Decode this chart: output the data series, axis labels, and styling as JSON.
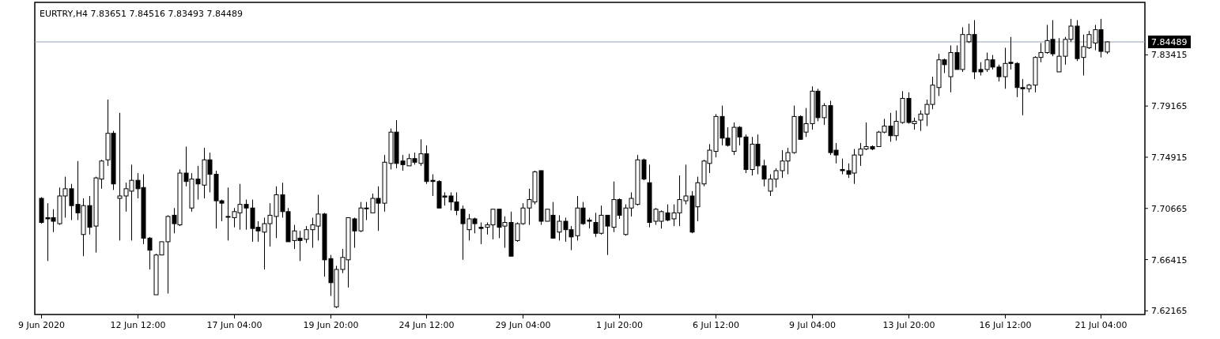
{
  "chart_data": {
    "type": "candlestick",
    "title": "EURTRY,H4  7.83651 7.84516 7.83493 7.84489",
    "categories": [
      "9 Jun 2020",
      null,
      null,
      null,
      null,
      null,
      null,
      null,
      null,
      null,
      null,
      null,
      null,
      null,
      null,
      null,
      "12 Jun 12:00",
      null,
      null,
      null,
      null,
      null,
      null,
      null,
      null,
      null,
      null,
      null,
      null,
      null,
      null,
      null,
      "17 Jun 04:00",
      null,
      null,
      null,
      null,
      null,
      null,
      null,
      null,
      null,
      null,
      null,
      null,
      null,
      null,
      null,
      "19 Jun 20:00",
      null,
      null,
      null,
      null,
      null,
      null,
      null,
      null,
      null,
      null,
      null,
      null,
      null,
      null,
      null,
      "24 Jun 12:00",
      null,
      null,
      null,
      null,
      null,
      null,
      null,
      null,
      null,
      null,
      null,
      null,
      null,
      null,
      null,
      "29 Jun 04:00",
      null,
      null,
      null,
      null,
      null,
      null,
      null,
      null,
      null,
      null,
      null,
      null,
      null,
      null,
      null,
      "1 Jul 20:00",
      null,
      null,
      null,
      null,
      null,
      null,
      null,
      null,
      null,
      null,
      null,
      null,
      null,
      null,
      null,
      "6 Jul 12:00",
      null,
      null,
      null,
      null,
      null,
      null,
      null,
      null,
      null,
      null,
      null,
      null,
      null,
      null,
      null,
      "9 Jul 04:00",
      null,
      null,
      null,
      null,
      null,
      null,
      null,
      null,
      null,
      null,
      null,
      null,
      null,
      null,
      null,
      "13 Jul 20:00",
      null,
      null,
      null,
      null,
      null,
      null,
      null,
      null,
      null,
      null,
      null,
      null,
      null,
      null,
      null,
      "16 Jul 12:00",
      null,
      null,
      null,
      null,
      null,
      null,
      null,
      null,
      null,
      null,
      null,
      null,
      null,
      null,
      null,
      "21 Jul 04:00",
      null
    ],
    "ohlc": [
      [
        7.715,
        7.716,
        7.694,
        7.695
      ],
      [
        7.699,
        7.711,
        7.663,
        7.698
      ],
      [
        7.699,
        7.706,
        7.687,
        7.696
      ],
      [
        7.694,
        7.724,
        7.693,
        7.717
      ],
      [
        7.717,
        7.733,
        7.699,
        7.723
      ],
      [
        7.723,
        7.727,
        7.697,
        7.709
      ],
      [
        7.71,
        7.746,
        7.697,
        7.703
      ],
      [
        7.685,
        7.715,
        7.667,
        7.709
      ],
      [
        7.709,
        7.717,
        7.685,
        7.691
      ],
      [
        7.692,
        7.733,
        7.67,
        7.732
      ],
      [
        7.731,
        7.747,
        7.723,
        7.746
      ],
      [
        7.747,
        7.797,
        7.742,
        7.769
      ],
      [
        7.769,
        7.771,
        7.722,
        7.727
      ],
      [
        7.715,
        7.786,
        7.68,
        7.717
      ],
      [
        7.717,
        7.728,
        7.704,
        7.723
      ],
      [
        7.721,
        7.743,
        7.68,
        7.73
      ],
      [
        7.73,
        7.736,
        7.715,
        7.723
      ],
      [
        7.724,
        7.735,
        7.677,
        7.682
      ],
      [
        7.682,
        7.683,
        7.656,
        7.672
      ],
      [
        7.635,
        7.669,
        7.635,
        7.668
      ],
      [
        7.668,
        7.679,
        7.668,
        7.679
      ],
      [
        7.679,
        7.701,
        7.636,
        7.7
      ],
      [
        7.701,
        7.707,
        7.686,
        7.694
      ],
      [
        7.693,
        7.739,
        7.692,
        7.736
      ],
      [
        7.736,
        7.758,
        7.725,
        7.729
      ],
      [
        7.707,
        7.736,
        7.704,
        7.731
      ],
      [
        7.731,
        7.742,
        7.714,
        7.727
      ],
      [
        7.726,
        7.757,
        7.715,
        7.747
      ],
      [
        7.747,
        7.753,
        7.72,
        7.735
      ],
      [
        7.735,
        7.738,
        7.69,
        7.713
      ],
      [
        7.713,
        7.714,
        7.696,
        7.711
      ],
      [
        7.7,
        7.724,
        7.68,
        7.7
      ],
      [
        7.699,
        7.707,
        7.691,
        7.704
      ],
      [
        7.703,
        7.727,
        7.689,
        7.71
      ],
      [
        7.71,
        7.714,
        7.689,
        7.707
      ],
      [
        7.707,
        7.714,
        7.679,
        7.69
      ],
      [
        7.691,
        7.696,
        7.679,
        7.688
      ],
      [
        7.687,
        7.699,
        7.656,
        7.694
      ],
      [
        7.694,
        7.711,
        7.675,
        7.701
      ],
      [
        7.7,
        7.725,
        7.682,
        7.718
      ],
      [
        7.718,
        7.728,
        7.699,
        7.704
      ],
      [
        7.704,
        7.707,
        7.679,
        7.679
      ],
      [
        7.68,
        7.693,
        7.673,
        7.688
      ],
      [
        7.682,
        7.688,
        7.663,
        7.68
      ],
      [
        7.681,
        7.692,
        7.678,
        7.689
      ],
      [
        7.689,
        7.699,
        7.674,
        7.693
      ],
      [
        7.692,
        7.718,
        7.68,
        7.702
      ],
      [
        7.702,
        7.703,
        7.65,
        7.664
      ],
      [
        7.665,
        7.668,
        7.634,
        7.645
      ],
      [
        7.625,
        7.659,
        7.624,
        7.656
      ],
      [
        7.656,
        7.673,
        7.653,
        7.666
      ],
      [
        7.664,
        7.699,
        7.641,
        7.699
      ],
      [
        7.698,
        7.699,
        7.674,
        7.688
      ],
      [
        7.688,
        7.712,
        7.687,
        7.707
      ],
      [
        7.707,
        7.712,
        7.697,
        7.707
      ],
      [
        7.703,
        7.719,
        7.703,
        7.715
      ],
      [
        7.715,
        7.725,
        7.688,
        7.711
      ],
      [
        7.711,
        7.751,
        7.704,
        7.745
      ],
      [
        7.744,
        7.773,
        7.739,
        7.77
      ],
      [
        7.77,
        7.78,
        7.74,
        7.744
      ],
      [
        7.746,
        7.751,
        7.738,
        7.743
      ],
      [
        7.742,
        7.752,
        7.742,
        7.748
      ],
      [
        7.748,
        7.753,
        7.743,
        7.745
      ],
      [
        7.744,
        7.764,
        7.742,
        7.752
      ],
      [
        7.752,
        7.759,
        7.727,
        7.729
      ],
      [
        7.73,
        7.735,
        7.717,
        7.729
      ],
      [
        7.729,
        7.73,
        7.707,
        7.707
      ],
      [
        7.717,
        7.72,
        7.709,
        7.716
      ],
      [
        7.717,
        7.72,
        7.705,
        7.712
      ],
      [
        7.712,
        7.72,
        7.701,
        7.705
      ],
      [
        7.706,
        7.709,
        7.664,
        7.694
      ],
      [
        7.689,
        7.702,
        7.68,
        7.698
      ],
      [
        7.698,
        7.699,
        7.686,
        7.694
      ],
      [
        7.691,
        7.695,
        7.677,
        7.69
      ],
      [
        7.691,
        7.695,
        7.685,
        7.693
      ],
      [
        7.693,
        7.706,
        7.681,
        7.706
      ],
      [
        7.706,
        7.706,
        7.682,
        7.691
      ],
      [
        7.692,
        7.7,
        7.674,
        7.695
      ],
      [
        7.695,
        7.704,
        7.667,
        7.667
      ],
      [
        7.68,
        7.695,
        7.679,
        7.694
      ],
      [
        7.694,
        7.711,
        7.693,
        7.707
      ],
      [
        7.707,
        7.723,
        7.693,
        7.714
      ],
      [
        7.712,
        7.738,
        7.71,
        7.737
      ],
      [
        7.738,
        7.738,
        7.693,
        7.696
      ],
      [
        7.696,
        7.706,
        7.696,
        7.706
      ],
      [
        7.701,
        7.712,
        7.682,
        7.682
      ],
      [
        7.687,
        7.701,
        7.68,
        7.696
      ],
      [
        7.696,
        7.699,
        7.679,
        7.689
      ],
      [
        7.689,
        7.692,
        7.672,
        7.683
      ],
      [
        7.684,
        7.717,
        7.68,
        7.707
      ],
      [
        7.707,
        7.712,
        7.693,
        7.694
      ],
      [
        7.697,
        7.699,
        7.69,
        7.696
      ],
      [
        7.695,
        7.703,
        7.683,
        7.686
      ],
      [
        7.686,
        7.709,
        7.685,
        7.701
      ],
      [
        7.701,
        7.701,
        7.668,
        7.692
      ],
      [
        7.691,
        7.729,
        7.687,
        7.714
      ],
      [
        7.714,
        7.715,
        7.698,
        7.701
      ],
      [
        7.685,
        7.71,
        7.684,
        7.707
      ],
      [
        7.707,
        7.72,
        7.7,
        7.715
      ],
      [
        7.71,
        7.751,
        7.709,
        7.747
      ],
      [
        7.747,
        7.748,
        7.73,
        7.731
      ],
      [
        7.728,
        7.743,
        7.691,
        7.695
      ],
      [
        7.696,
        7.707,
        7.693,
        7.706
      ],
      [
        7.696,
        7.705,
        7.69,
        7.704
      ],
      [
        7.703,
        7.71,
        7.696,
        7.697
      ],
      [
        7.698,
        7.71,
        7.692,
        7.703
      ],
      [
        7.703,
        7.734,
        7.692,
        7.714
      ],
      [
        7.713,
        7.743,
        7.71,
        7.717
      ],
      [
        7.717,
        7.721,
        7.686,
        7.687
      ],
      [
        7.708,
        7.733,
        7.696,
        7.728
      ],
      [
        7.727,
        7.747,
        7.725,
        7.746
      ],
      [
        7.744,
        7.76,
        7.736,
        7.755
      ],
      [
        7.754,
        7.785,
        7.749,
        7.783
      ],
      [
        7.783,
        7.792,
        7.759,
        7.765
      ],
      [
        7.765,
        7.774,
        7.758,
        7.759
      ],
      [
        7.754,
        7.778,
        7.751,
        7.774
      ],
      [
        7.774,
        7.775,
        7.759,
        7.766
      ],
      [
        7.766,
        7.768,
        7.736,
        7.739
      ],
      [
        7.739,
        7.766,
        7.734,
        7.76
      ],
      [
        7.76,
        7.768,
        7.735,
        7.742
      ],
      [
        7.742,
        7.747,
        7.725,
        7.731
      ],
      [
        7.721,
        7.735,
        7.717,
        7.731
      ],
      [
        7.731,
        7.74,
        7.724,
        7.738
      ],
      [
        7.738,
        7.755,
        7.732,
        7.746
      ],
      [
        7.746,
        7.757,
        7.735,
        7.753
      ],
      [
        7.753,
        7.792,
        7.752,
        7.783
      ],
      [
        7.783,
        7.784,
        7.764,
        7.764
      ],
      [
        7.77,
        7.79,
        7.766,
        7.777
      ],
      [
        7.777,
        7.808,
        7.772,
        7.804
      ],
      [
        7.804,
        7.806,
        7.779,
        7.782
      ],
      [
        7.782,
        7.794,
        7.776,
        7.792
      ],
      [
        7.792,
        7.796,
        7.751,
        7.753
      ],
      [
        7.755,
        7.761,
        7.744,
        7.751
      ],
      [
        7.739,
        7.748,
        7.735,
        7.738
      ],
      [
        7.738,
        7.744,
        7.732,
        7.735
      ],
      [
        7.736,
        7.756,
        7.727,
        7.751
      ],
      [
        7.751,
        7.761,
        7.742,
        7.756
      ],
      [
        7.756,
        7.778,
        7.755,
        7.758
      ],
      [
        7.758,
        7.759,
        7.755,
        7.756
      ],
      [
        7.758,
        7.771,
        7.758,
        7.77
      ],
      [
        7.77,
        7.781,
        7.769,
        7.775
      ],
      [
        7.775,
        7.786,
        7.762,
        7.767
      ],
      [
        7.767,
        7.788,
        7.763,
        7.779
      ],
      [
        7.778,
        7.804,
        7.777,
        7.798
      ],
      [
        7.798,
        7.803,
        7.777,
        7.778
      ],
      [
        7.777,
        7.782,
        7.772,
        7.779
      ],
      [
        7.78,
        7.788,
        7.771,
        7.785
      ],
      [
        7.785,
        7.797,
        7.775,
        7.793
      ],
      [
        7.793,
        7.816,
        7.789,
        7.809
      ],
      [
        7.807,
        7.835,
        7.8,
        7.83
      ],
      [
        7.83,
        7.831,
        7.819,
        7.826
      ],
      [
        7.816,
        7.842,
        7.803,
        7.836
      ],
      [
        7.836,
        7.842,
        7.822,
        7.822
      ],
      [
        7.822,
        7.857,
        7.82,
        7.851
      ],
      [
        7.845,
        7.86,
        7.844,
        7.851
      ],
      [
        7.851,
        7.863,
        7.814,
        7.82
      ],
      [
        7.822,
        7.828,
        7.817,
        7.82
      ],
      [
        7.822,
        7.836,
        7.82,
        7.83
      ],
      [
        7.83,
        7.834,
        7.822,
        7.824
      ],
      [
        7.824,
        7.826,
        7.812,
        7.816
      ],
      [
        7.816,
        7.84,
        7.806,
        7.827
      ],
      [
        7.828,
        7.849,
        7.822,
        7.827
      ],
      [
        7.827,
        7.828,
        7.799,
        7.807
      ],
      [
        7.807,
        7.814,
        7.784,
        7.806
      ],
      [
        7.806,
        7.81,
        7.803,
        7.809
      ],
      [
        7.809,
        7.833,
        7.803,
        7.832
      ],
      [
        7.832,
        7.844,
        7.828,
        7.836
      ],
      [
        7.836,
        7.859,
        7.835,
        7.846
      ],
      [
        7.847,
        7.863,
        7.833,
        7.835
      ],
      [
        7.82,
        7.848,
        7.82,
        7.833
      ],
      [
        7.833,
        7.849,
        7.826,
        7.847
      ],
      [
        7.847,
        7.864,
        7.845,
        7.858
      ],
      [
        7.858,
        7.863,
        7.829,
        7.831
      ],
      [
        7.832,
        7.851,
        7.817,
        7.841
      ],
      [
        7.84,
        7.854,
        7.839,
        7.851
      ],
      [
        7.844,
        7.859,
        7.838,
        7.855
      ],
      [
        7.855,
        7.864,
        7.832,
        7.837
      ],
      [
        7.83651,
        7.84516,
        7.83493,
        7.84489
      ]
    ],
    "ylim": [
      7.6186,
      7.8777
    ],
    "yticks": [
      7.62165,
      7.66415,
      7.70665,
      7.74915,
      7.79165,
      7.83415
    ],
    "ref_lines": [
      {
        "axis": "y",
        "value": 7.84489,
        "label": "7.84489",
        "color": "#8fa0b4"
      }
    ]
  }
}
